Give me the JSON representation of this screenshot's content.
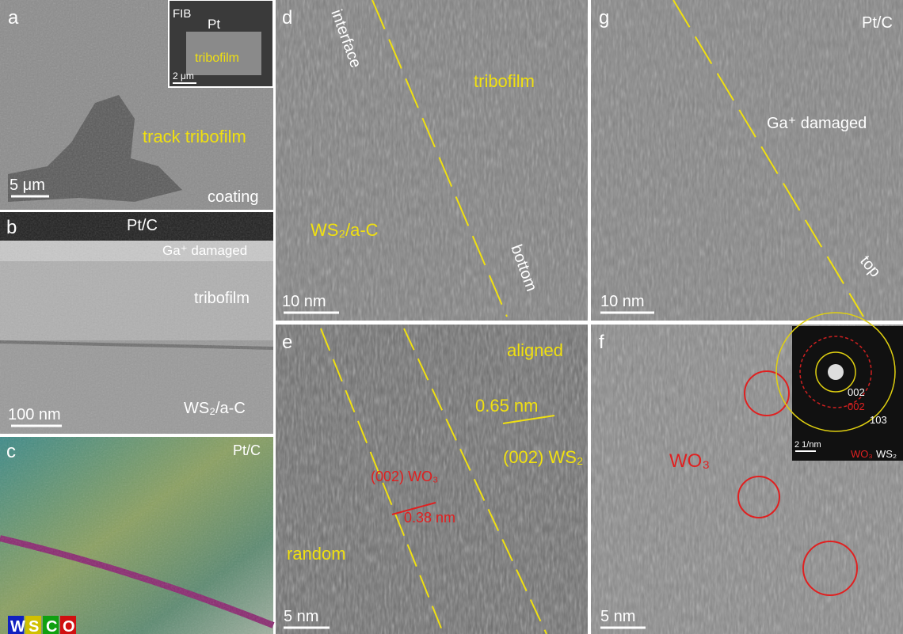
{
  "panels": [
    {
      "id": "a",
      "scale_bar": "5 μm",
      "labels": [
        "track tribofilm",
        "coating"
      ],
      "inset": {
        "labels": [
          "FIB",
          "Pt",
          "tribofilm"
        ],
        "scale_bar": "2 μm"
      }
    },
    {
      "id": "b",
      "scale_bar": "100 nm",
      "labels": [
        "Pt/C",
        "Ga⁺ damaged",
        "tribofilm",
        "WS₂/a-C"
      ]
    },
    {
      "id": "c",
      "labels": [
        "Pt/C"
      ],
      "elements": [
        "W",
        "S",
        "C",
        "O"
      ]
    },
    {
      "id": "d",
      "scale_bar": "10 nm",
      "labels": [
        "interface",
        "tribofilm",
        "WS₂/a-C",
        "bottom"
      ]
    },
    {
      "id": "g",
      "scale_bar": "10 nm",
      "labels": [
        "Pt/C",
        "Ga⁺ damaged",
        "top"
      ]
    },
    {
      "id": "e",
      "scale_bar": "5 nm",
      "labels": [
        "aligned",
        "0.65 nm",
        "(002) WO₃",
        "0.38 nm",
        "(002) WS₂",
        "random"
      ]
    },
    {
      "id": "f",
      "scale_bar": "5 nm",
      "labels": [
        "WO₃"
      ],
      "inset": {
        "labels": [
          "002",
          "002",
          "103",
          "WO₃",
          "WS₂"
        ],
        "scale_bar": "2 1/nm"
      }
    }
  ]
}
